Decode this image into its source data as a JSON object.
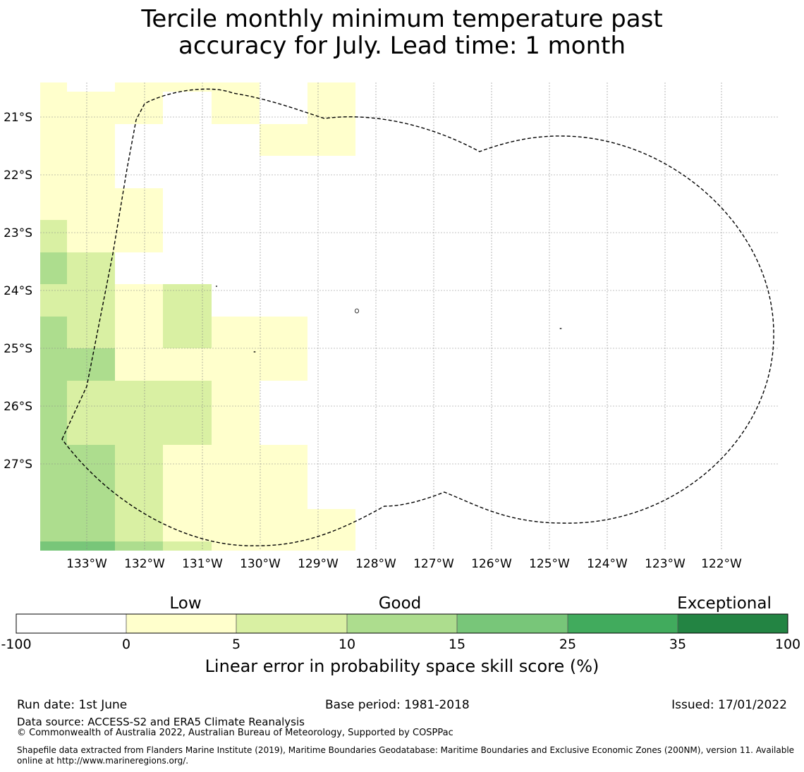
{
  "title": {
    "line1": "Tercile monthly minimum temperature past",
    "line2": "accuracy for July. Lead time: 1 month"
  },
  "map": {
    "latitude_labels": [
      "21°S",
      "22°S",
      "23°S",
      "24°S",
      "25°S",
      "26°S",
      "27°S"
    ],
    "longitude_labels": [
      "133°W",
      "132°W",
      "131°W",
      "130°W",
      "129°W",
      "128°W",
      "127°W",
      "126°W",
      "125°W",
      "124°W",
      "123°W",
      "122°W"
    ],
    "boundary_line_style": "dashed",
    "gridlines": true
  },
  "colorbar": {
    "category_labels": {
      "low": "Low",
      "good": "Good",
      "exceptional": "Exceptional"
    },
    "tick_labels": [
      "-100",
      "0",
      "5",
      "10",
      "15",
      "25",
      "35",
      "100"
    ],
    "colors": [
      "#ffffff",
      "#ffffcc",
      "#d9f0a3",
      "#addd8e",
      "#78c679",
      "#41ab5d",
      "#238443"
    ],
    "label": "Linear error in probability space skill score (%)"
  },
  "footer": {
    "run_date": "Run date: 1st June",
    "base_period": "Base period: 1981-2018",
    "issued": "Issued: 17/01/2022",
    "data_source": "Data source: ACCESS-S2 and ERA5 Climate Reanalysis",
    "copyright": "© Commonwealth of Australia 2022, Australian Bureau of Meteorology, Supported by COSPPac",
    "shapefile_note": "Shapefile data extracted from Flanders Marine Institute (2019), Maritime Boundaries Geodatabase: Maritime Boundaries and Exclusive Economic Zones (200NM), version 11. Available online at http://www.marineregions.org/."
  }
}
